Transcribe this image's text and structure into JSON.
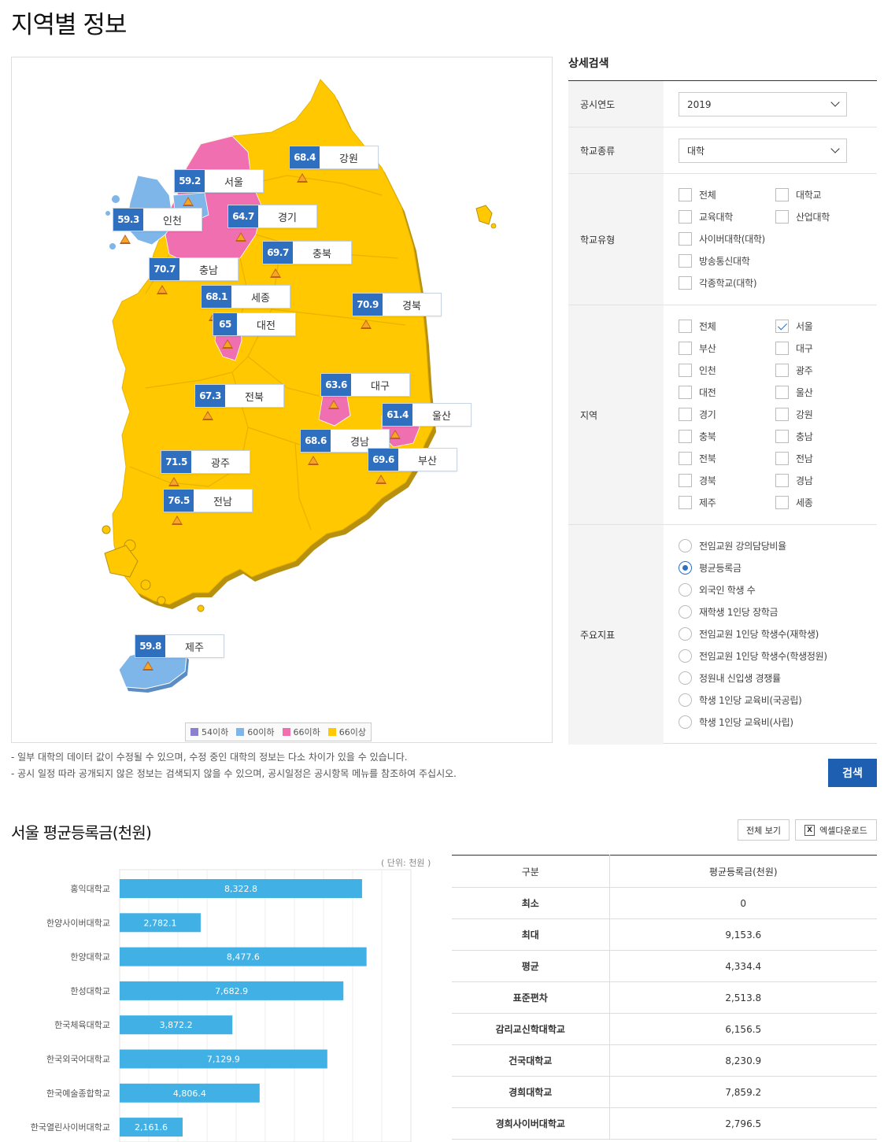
{
  "page": {
    "title": "지역별 정보"
  },
  "map": {
    "regions": [
      {
        "name": "강원",
        "value": "68.4"
      },
      {
        "name": "서울",
        "value": "59.2"
      },
      {
        "name": "인천",
        "value": "59.3"
      },
      {
        "name": "경기",
        "value": "64.7"
      },
      {
        "name": "충북",
        "value": "69.7"
      },
      {
        "name": "충남",
        "value": "70.7"
      },
      {
        "name": "세종",
        "value": "68.1"
      },
      {
        "name": "대전",
        "value": "65"
      },
      {
        "name": "경북",
        "value": "70.9"
      },
      {
        "name": "전북",
        "value": "67.3"
      },
      {
        "name": "대구",
        "value": "63.6"
      },
      {
        "name": "울산",
        "value": "61.4"
      },
      {
        "name": "경남",
        "value": "68.6"
      },
      {
        "name": "부산",
        "value": "69.6"
      },
      {
        "name": "광주",
        "value": "71.5"
      },
      {
        "name": "전남",
        "value": "76.5"
      },
      {
        "name": "제주",
        "value": "59.8"
      }
    ],
    "legend": [
      {
        "label": "54이하",
        "color": "#8b7fd0"
      },
      {
        "label": "60이하",
        "color": "#7fb6ea"
      },
      {
        "label": "66이하",
        "color": "#ef6fb0"
      },
      {
        "label": "66이상",
        "color": "#ffc800"
      }
    ]
  },
  "notes": [
    "- 일부 대학의 데이터 값이 수정될 수 있으며, 수정 중인 대학의 정보는 다소 차이가 있을 수 있습니다.",
    "- 공시 일정 따라 공개되지 않은 정보는 검색되지 않을 수 있으며, 공시일정은 공시항목 메뉴를 참조하여 주십시오."
  ],
  "search": {
    "title": "상세검색",
    "year": {
      "label": "공시연도",
      "value": "2019"
    },
    "school_kind": {
      "label": "학교종류",
      "value": "대학"
    },
    "school_type": {
      "label": "학교유형",
      "options": [
        "전체",
        "대학교",
        "교육대학",
        "산업대학",
        "사이버대학(대학)",
        "방송통신대학",
        "각종학교(대학)"
      ]
    },
    "region": {
      "label": "지역",
      "options": [
        "전체",
        "서울",
        "부산",
        "대구",
        "인천",
        "광주",
        "대전",
        "울산",
        "경기",
        "강원",
        "충북",
        "충남",
        "전북",
        "전남",
        "경북",
        "경남",
        "제주",
        "세종"
      ],
      "checked": "서울"
    },
    "indicator": {
      "label": "주요지표",
      "options": [
        "전임교원 강의담당비율",
        "평균등록금",
        "외국인 학생 수",
        "재학생 1인당 장학금",
        "전임교원 1인당 학생수(재학생)",
        "전임교원 1인당 학생수(학생정원)",
        "정원내 신입생 경쟁률",
        "학생 1인당 교육비(국공립)",
        "학생 1인당 교육비(사립)"
      ],
      "selected": "평균등록금"
    },
    "button": "검색"
  },
  "result": {
    "title": "서울 평균등록금(천원)",
    "view_all": "전체 보기",
    "excel": "엑셀다운로드",
    "unit": "( 단위: 천원 )"
  },
  "chart_data": {
    "type": "bar",
    "orientation": "horizontal",
    "categories": [
      "홍익대학교",
      "한양사이버대학교",
      "한양대학교",
      "한성대학교",
      "한국체육대학교",
      "한국외국어대학교",
      "한국예술종합학교",
      "한국열린사이버대학교"
    ],
    "values": [
      8322.8,
      2782.1,
      8477.6,
      7682.9,
      3872.2,
      7129.9,
      4806.4,
      2161.6
    ],
    "value_labels": [
      "8,322.8",
      "2,782.1",
      "8,477.6",
      "7,682.9",
      "3,872.2",
      "7,129.9",
      "4,806.4",
      "2,161.6"
    ],
    "xlim": [
      0,
      10000
    ],
    "color": "#41b0e4",
    "grid": true
  },
  "table": {
    "headers": [
      "구분",
      "평균등록금(천원)"
    ],
    "rows": [
      [
        "최소",
        "0"
      ],
      [
        "최대",
        "9,153.6"
      ],
      [
        "평균",
        "4,334.4"
      ],
      [
        "표준편차",
        "2,513.8"
      ],
      [
        "감리교신학대학교",
        "6,156.5"
      ],
      [
        "건국대학교",
        "8,230.9"
      ],
      [
        "경희대학교",
        "7,859.2"
      ],
      [
        "경희사이버대학교",
        "2,796.5"
      ]
    ]
  }
}
